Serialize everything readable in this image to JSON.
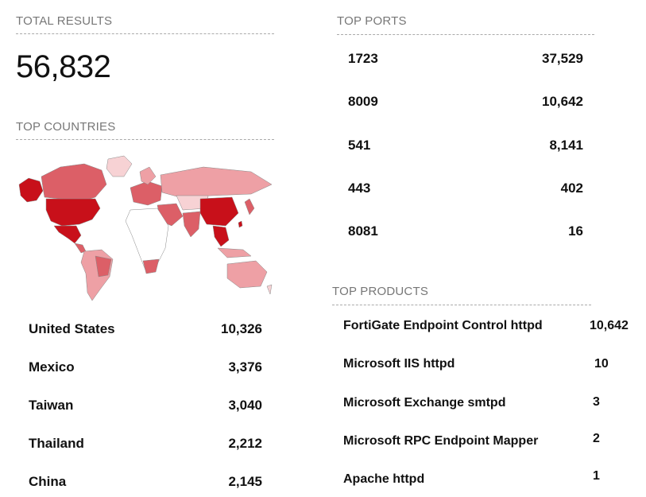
{
  "total": {
    "title": "TOTAL RESULTS",
    "value": "56,832"
  },
  "countries": {
    "title": "TOP COUNTRIES",
    "rows": [
      {
        "name": "United States",
        "count": "10,326"
      },
      {
        "name": "Mexico",
        "count": "3,376"
      },
      {
        "name": "Taiwan",
        "count": "3,040"
      },
      {
        "name": "Thailand",
        "count": "2,212"
      },
      {
        "name": "China",
        "count": "2,145"
      }
    ]
  },
  "ports": {
    "title": "TOP PORTS",
    "rows": [
      {
        "port": "1723",
        "count": "37,529"
      },
      {
        "port": "8009",
        "count": "10,642"
      },
      {
        "port": "541",
        "count": "8,141"
      },
      {
        "port": "443",
        "count": "402"
      },
      {
        "port": "8081",
        "count": "16"
      }
    ]
  },
  "products": {
    "title": "TOP PRODUCTS",
    "rows": [
      {
        "name": "FortiGate Endpoint Control httpd",
        "count": "10,642"
      },
      {
        "name": "Microsoft IIS httpd",
        "count": "10"
      },
      {
        "name": "Microsoft Exchange smtpd",
        "count": "3"
      },
      {
        "name": "Microsoft RPC Endpoint Mapper",
        "count": "2"
      },
      {
        "name": "Apache httpd",
        "count": "1"
      }
    ]
  },
  "map": {
    "colors": {
      "high": "#c8101a",
      "mid": "#dc5f67",
      "low": "#eea0a5",
      "faint": "#f7d2d4",
      "none": "#ffffff",
      "stroke": "#888888"
    }
  }
}
